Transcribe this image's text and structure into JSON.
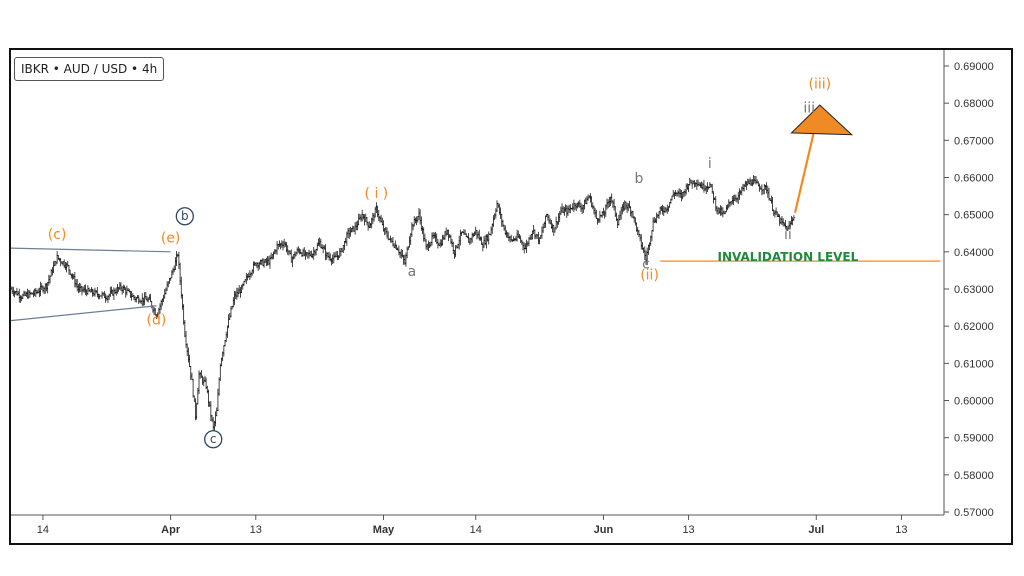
{
  "badge": {
    "text": "IBKR • AUD / USD • 4h"
  },
  "chart_data": {
    "type": "ohlc",
    "ylim": [
      0.57,
      0.69
    ],
    "y_ticks": [
      "0.69000",
      "0.68000",
      "0.67000",
      "0.66000",
      "0.65000",
      "0.64000",
      "0.63000",
      "0.62000",
      "0.61000",
      "0.60000",
      "0.59000",
      "0.58000",
      "0.57000"
    ],
    "x_ticks": [
      {
        "label": "14",
        "day": 14
      },
      {
        "label": "Apr",
        "day": 32,
        "bold": true
      },
      {
        "label": "13",
        "day": 44
      },
      {
        "label": "May",
        "day": 62,
        "bold": true
      },
      {
        "label": "14",
        "day": 75
      },
      {
        "label": "Jun",
        "day": 93,
        "bold": true
      },
      {
        "label": "13",
        "day": 105
      },
      {
        "label": "Jul",
        "day": 123,
        "bold": true
      },
      {
        "label": "13",
        "day": 135
      }
    ],
    "x_range_days": [
      9.5,
      141
    ],
    "price_path": [
      [
        9.5,
        0.63
      ],
      [
        11,
        0.628
      ],
      [
        13,
        0.629
      ],
      [
        14.5,
        0.631
      ],
      [
        16,
        0.6385
      ],
      [
        17.5,
        0.636
      ],
      [
        19,
        0.63
      ],
      [
        21,
        0.629
      ],
      [
        23,
        0.628
      ],
      [
        25,
        0.6305
      ],
      [
        27,
        0.6275
      ],
      [
        29,
        0.627
      ],
      [
        30,
        0.623
      ],
      [
        31,
        0.628
      ],
      [
        32.5,
        0.636
      ],
      [
        33,
        0.6395
      ],
      [
        34,
        0.618
      ],
      [
        35,
        0.605
      ],
      [
        35.5,
        0.596
      ],
      [
        36,
        0.607
      ],
      [
        37,
        0.604
      ],
      [
        37.5,
        0.598
      ],
      [
        38,
        0.5925
      ],
      [
        38.5,
        0.597
      ],
      [
        39,
        0.61
      ],
      [
        40,
        0.62
      ],
      [
        41,
        0.628
      ],
      [
        42,
        0.63
      ],
      [
        43,
        0.634
      ],
      [
        44,
        0.637
      ],
      [
        45,
        0.637
      ],
      [
        46,
        0.6375
      ],
      [
        47,
        0.6415
      ],
      [
        48,
        0.6425
      ],
      [
        49,
        0.638
      ],
      [
        50,
        0.6405
      ],
      [
        51,
        0.639
      ],
      [
        52,
        0.6395
      ],
      [
        53,
        0.6425
      ],
      [
        54,
        0.639
      ],
      [
        55,
        0.638
      ],
      [
        56,
        0.64
      ],
      [
        57,
        0.645
      ],
      [
        58,
        0.6465
      ],
      [
        59,
        0.65
      ],
      [
        60,
        0.647
      ],
      [
        61,
        0.6515
      ],
      [
        62,
        0.646
      ],
      [
        63,
        0.643
      ],
      [
        64,
        0.641
      ],
      [
        65,
        0.637
      ],
      [
        66,
        0.647
      ],
      [
        67,
        0.65
      ],
      [
        68,
        0.641
      ],
      [
        69,
        0.644
      ],
      [
        70,
        0.642
      ],
      [
        71,
        0.646
      ],
      [
        72,
        0.64
      ],
      [
        73,
        0.645
      ],
      [
        74,
        0.643
      ],
      [
        75,
        0.6455
      ],
      [
        76,
        0.642
      ],
      [
        77,
        0.645
      ],
      [
        78,
        0.653
      ],
      [
        79,
        0.646
      ],
      [
        80,
        0.643
      ],
      [
        81,
        0.644
      ],
      [
        82,
        0.641
      ],
      [
        83,
        0.646
      ],
      [
        84,
        0.643
      ],
      [
        85,
        0.65
      ],
      [
        86,
        0.646
      ],
      [
        87,
        0.651
      ],
      [
        88,
        0.651
      ],
      [
        89,
        0.653
      ],
      [
        90,
        0.652
      ],
      [
        91,
        0.655
      ],
      [
        92,
        0.649
      ],
      [
        93,
        0.65
      ],
      [
        94,
        0.655
      ],
      [
        95,
        0.648
      ],
      [
        96,
        0.653
      ],
      [
        97,
        0.651
      ],
      [
        98,
        0.644
      ],
      [
        99,
        0.638
      ],
      [
        100,
        0.648
      ],
      [
        101,
        0.651
      ],
      [
        102,
        0.652
      ],
      [
        103,
        0.656
      ],
      [
        104,
        0.655
      ],
      [
        105,
        0.6585
      ],
      [
        106,
        0.659
      ],
      [
        107,
        0.6575
      ],
      [
        108,
        0.658
      ],
      [
        109,
        0.6515
      ],
      [
        110,
        0.65
      ],
      [
        111,
        0.654
      ],
      [
        112,
        0.655
      ],
      [
        113,
        0.658
      ],
      [
        114,
        0.659
      ],
      [
        115,
        0.6575
      ],
      [
        116,
        0.657
      ],
      [
        117,
        0.651
      ],
      [
        118,
        0.648
      ],
      [
        119,
        0.646
      ],
      [
        120,
        0.6505
      ]
    ],
    "lines": [
      {
        "name": "triangle-upper",
        "color": "#6b7f96",
        "points": [
          [
            9.5,
            0.641
          ],
          [
            32,
            0.64
          ]
        ]
      },
      {
        "name": "triangle-lower",
        "color": "#6b7f96",
        "points": [
          [
            9.5,
            0.6215
          ],
          [
            30,
            0.6255
          ]
        ]
      },
      {
        "name": "invalidation-line",
        "color": "#f08a24",
        "points": [
          [
            101,
            0.6375
          ],
          [
            140.5,
            0.6375
          ]
        ]
      },
      {
        "name": "projection-arrow",
        "color": "#f08a24",
        "points": [
          [
            120,
            0.6505
          ],
          [
            123,
            0.675
          ]
        ]
      }
    ],
    "arrowhead": {
      "color": "#f08a24",
      "tip": [
        123.5,
        0.6795
      ],
      "base": [
        [
          119.5,
          0.672
        ],
        [
          128,
          0.6715
        ]
      ]
    },
    "labels": [
      {
        "name": "wave-c-orange",
        "text": "(c)",
        "day": 16,
        "y": 0.6435,
        "color": "#f08a24"
      },
      {
        "name": "wave-e-orange",
        "text": "(e)",
        "day": 32,
        "y": 0.6425,
        "color": "#f08a24"
      },
      {
        "name": "wave-d-orange",
        "text": "(d)",
        "day": 30,
        "y": 0.6205,
        "color": "#f08a24"
      },
      {
        "name": "wave-b-circled",
        "text": "b",
        "day": 34,
        "y": 0.6485,
        "color": "#2d4766",
        "circled": true
      },
      {
        "name": "wave-c-circled",
        "text": "c",
        "day": 38,
        "y": 0.5885,
        "color": "#2d4766",
        "circled": true
      },
      {
        "name": "wave-i-orange",
        "text": "( i )",
        "day": 61,
        "y": 0.6545,
        "color": "#f08a24"
      },
      {
        "name": "wave-a-grey",
        "text": "a",
        "day": 66,
        "y": 0.6335,
        "color": "#777777"
      },
      {
        "name": "wave-b-grey",
        "text": "b",
        "day": 98,
        "y": 0.6585,
        "color": "#777777"
      },
      {
        "name": "wave-c-grey",
        "text": "c",
        "day": 99,
        "y": 0.6355,
        "color": "#777777"
      },
      {
        "name": "wave-ii-orange",
        "text": "(ii)",
        "day": 99.5,
        "y": 0.6325,
        "color": "#f08a24"
      },
      {
        "name": "wave-i-grey",
        "text": "i",
        "day": 108,
        "y": 0.6625,
        "color": "#777777"
      },
      {
        "name": "wave-ii-grey",
        "text": "ii",
        "day": 119,
        "y": 0.6435,
        "color": "#777777"
      },
      {
        "name": "wave-iii-grey",
        "text": "iii",
        "day": 122,
        "y": 0.6775,
        "color": "#777777"
      },
      {
        "name": "wave-iii-orange",
        "text": "(iii)",
        "day": 123.5,
        "y": 0.684,
        "color": "#f08a24"
      },
      {
        "name": "invalidation-label",
        "text": "INVALIDATION LEVEL",
        "day": 119,
        "y": 0.6375,
        "color": "#1f8a3a",
        "bold": true
      }
    ]
  }
}
